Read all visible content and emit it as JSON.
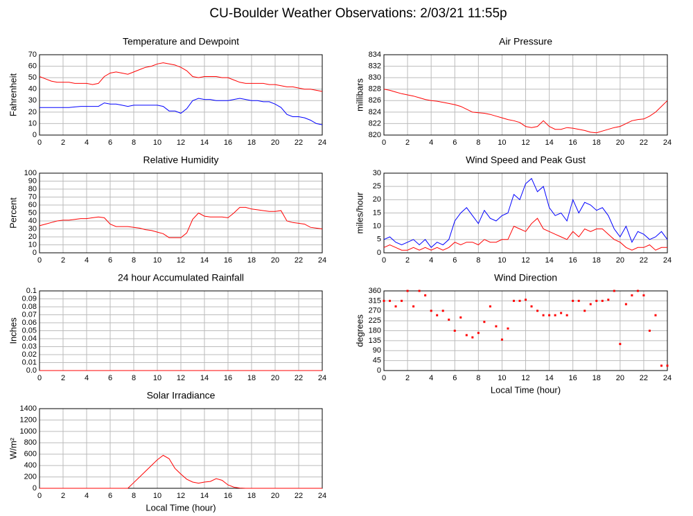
{
  "title": "CU-Boulder Weather Observations: 2/03/21 11:55p",
  "chart_data": [
    {
      "type": "line",
      "title": "Temperature and Dewpoint",
      "ylabel": "Fahrenheit",
      "x": [
        0,
        0.5,
        1,
        1.5,
        2,
        2.5,
        3,
        3.5,
        4,
        4.5,
        5,
        5.5,
        6,
        6.5,
        7,
        7.5,
        8,
        8.5,
        9,
        9.5,
        10,
        10.5,
        11,
        11.5,
        12,
        12.5,
        13,
        13.5,
        14,
        14.5,
        15,
        15.5,
        16,
        16.5,
        17,
        17.5,
        18,
        18.5,
        19,
        19.5,
        20,
        20.5,
        21,
        21.5,
        22,
        22.5,
        23,
        23.5,
        24
      ],
      "series": [
        {
          "color": "#ff0000",
          "values": [
            51,
            49,
            47,
            46,
            46,
            46,
            45,
            45,
            45,
            44,
            45,
            51,
            54,
            55,
            54,
            53,
            55,
            57,
            59,
            60,
            62,
            63,
            62,
            61,
            59,
            56,
            51,
            50,
            51,
            51,
            51,
            50,
            50,
            48,
            46,
            45,
            45,
            45,
            45,
            44,
            44,
            43,
            42,
            42,
            41,
            40,
            40,
            39,
            38
          ]
        },
        {
          "color": "#0000ff",
          "values": [
            24,
            24,
            24,
            24,
            24,
            24,
            24.5,
            25,
            25,
            25,
            25,
            28,
            27,
            27,
            26,
            25,
            26,
            26,
            26,
            26,
            26,
            25,
            21,
            21,
            19,
            23,
            30,
            32,
            31,
            31,
            30,
            30,
            30,
            31,
            32,
            31,
            30,
            30,
            29,
            29,
            27,
            24,
            18,
            16,
            16,
            15,
            13,
            10,
            9
          ]
        }
      ],
      "xlim": [
        0,
        24
      ],
      "xticks": [
        0,
        2,
        4,
        6,
        8,
        10,
        12,
        14,
        16,
        18,
        20,
        22,
        24
      ],
      "ylim": [
        0,
        70
      ],
      "yticks": [
        0,
        10,
        20,
        30,
        40,
        50,
        60,
        70
      ],
      "grid": true
    },
    {
      "type": "line",
      "title": "Air Pressure",
      "ylabel": "millibars",
      "x": [
        0,
        0.5,
        1,
        1.5,
        2,
        2.5,
        3,
        3.5,
        4,
        4.5,
        5,
        5.5,
        6,
        6.5,
        7,
        7.5,
        8,
        8.5,
        9,
        9.5,
        10,
        10.5,
        11,
        11.5,
        12,
        12.5,
        13,
        13.5,
        14,
        14.5,
        15,
        15.5,
        16,
        16.5,
        17,
        17.5,
        18,
        18.5,
        19,
        19.5,
        20,
        20.5,
        21,
        21.5,
        22,
        22.5,
        23,
        23.5,
        24
      ],
      "series": [
        {
          "color": "#ff0000",
          "values": [
            828,
            827.8,
            827.5,
            827.2,
            827,
            826.8,
            826.5,
            826.2,
            826,
            825.9,
            825.7,
            825.5,
            825.3,
            825,
            824.5,
            824,
            823.9,
            823.8,
            823.6,
            823.3,
            823,
            822.7,
            822.5,
            822.2,
            821.5,
            821.3,
            821.5,
            822.5,
            821.5,
            821,
            821,
            821.3,
            821.2,
            821,
            820.8,
            820.5,
            820.4,
            820.7,
            821,
            821.3,
            821.5,
            822,
            822.5,
            822.7,
            822.8,
            823.3,
            824,
            825,
            826
          ]
        }
      ],
      "xlim": [
        0,
        24
      ],
      "xticks": [
        0,
        2,
        4,
        6,
        8,
        10,
        12,
        14,
        16,
        18,
        20,
        22,
        24
      ],
      "ylim": [
        820,
        834
      ],
      "yticks": [
        820,
        822,
        824,
        826,
        828,
        830,
        832,
        834
      ],
      "grid": true
    },
    {
      "type": "line",
      "title": "Relative Humidity",
      "ylabel": "Percent",
      "x": [
        0,
        0.5,
        1,
        1.5,
        2,
        2.5,
        3,
        3.5,
        4,
        4.5,
        5,
        5.5,
        6,
        6.5,
        7,
        7.5,
        8,
        8.5,
        9,
        9.5,
        10,
        10.5,
        11,
        11.5,
        12,
        12.5,
        13,
        13.5,
        14,
        14.5,
        15,
        15.5,
        16,
        16.5,
        17,
        17.5,
        18,
        18.5,
        19,
        19.5,
        20,
        20.5,
        21,
        21.5,
        22,
        22.5,
        23,
        23.5,
        24
      ],
      "series": [
        {
          "color": "#ff0000",
          "values": [
            34,
            36,
            38,
            40,
            41,
            41,
            42,
            43,
            43,
            44,
            45,
            44,
            36,
            33,
            33,
            33,
            32,
            31,
            29,
            28,
            26,
            24,
            19,
            19,
            19,
            25,
            42,
            50,
            46,
            45,
            45,
            45,
            44,
            50,
            57,
            57,
            55,
            54,
            53,
            52,
            52,
            53,
            40,
            38,
            37,
            36,
            32,
            31,
            30
          ]
        }
      ],
      "xlim": [
        0,
        24
      ],
      "xticks": [
        0,
        2,
        4,
        6,
        8,
        10,
        12,
        14,
        16,
        18,
        20,
        22,
        24
      ],
      "ylim": [
        0,
        100
      ],
      "yticks": [
        0,
        10,
        20,
        30,
        40,
        50,
        60,
        70,
        80,
        90,
        100
      ],
      "grid": true
    },
    {
      "type": "line",
      "title": "Wind Speed and Peak Gust",
      "ylabel": "miles/hour",
      "x": [
        0,
        0.5,
        1,
        1.5,
        2,
        2.5,
        3,
        3.5,
        4,
        4.5,
        5,
        5.5,
        6,
        6.5,
        7,
        7.5,
        8,
        8.5,
        9,
        9.5,
        10,
        10.5,
        11,
        11.5,
        12,
        12.5,
        13,
        13.5,
        14,
        14.5,
        15,
        15.5,
        16,
        16.5,
        17,
        17.5,
        18,
        18.5,
        19,
        19.5,
        20,
        20.5,
        21,
        21.5,
        22,
        22.5,
        23,
        23.5,
        24
      ],
      "series": [
        {
          "color": "#0000ff",
          "values": [
            5,
            6,
            4,
            3,
            4,
            5,
            3,
            5,
            2,
            4,
            3,
            5,
            12,
            15,
            17,
            14,
            11,
            16,
            13,
            12,
            14,
            15,
            22,
            20,
            26,
            28,
            23,
            25,
            17,
            14,
            15,
            12,
            20,
            15,
            19,
            18,
            16,
            17,
            14,
            9,
            6,
            10,
            4,
            8,
            7,
            5,
            6,
            8,
            5
          ]
        },
        {
          "color": "#ff0000",
          "values": [
            2,
            3,
            2,
            1,
            1,
            2,
            1,
            2,
            1,
            2,
            1,
            2,
            4,
            3,
            4,
            4,
            3,
            5,
            4,
            4,
            5,
            5,
            10,
            9,
            8,
            11,
            13,
            9,
            8,
            7,
            6,
            5,
            8,
            6,
            9,
            8,
            9,
            9,
            7,
            5,
            4,
            2,
            1,
            2,
            2,
            3,
            1,
            2,
            2
          ]
        }
      ],
      "xlim": [
        0,
        24
      ],
      "xticks": [
        0,
        2,
        4,
        6,
        8,
        10,
        12,
        14,
        16,
        18,
        20,
        22,
        24
      ],
      "ylim": [
        0,
        30
      ],
      "yticks": [
        0,
        5,
        10,
        15,
        20,
        25,
        30
      ],
      "grid": true
    },
    {
      "type": "line",
      "title": "24 hour Accumulated Rainfall",
      "ylabel": "Inches",
      "x": [
        0,
        2,
        4,
        6,
        8,
        10,
        12,
        14,
        16,
        18,
        20,
        22,
        24
      ],
      "series": [
        {
          "color": "#ff0000",
          "values": [
            0,
            0,
            0,
            0,
            0,
            0,
            0,
            0,
            0,
            0,
            0,
            0,
            0
          ]
        }
      ],
      "xlim": [
        0,
        24
      ],
      "xticks": [
        0,
        2,
        4,
        6,
        8,
        10,
        12,
        14,
        16,
        18,
        20,
        22,
        24
      ],
      "ylim": [
        0,
        0.1
      ],
      "yticks": [
        {
          "value": 0,
          "label": "0.0"
        },
        0.01,
        0.02,
        0.03,
        0.04,
        0.05,
        0.06,
        0.07,
        0.08,
        0.09,
        0.1
      ],
      "grid": true
    },
    {
      "type": "scatter",
      "title": "Wind Direction",
      "ylabel": "degrees",
      "xlabel": "Local Time (hour)",
      "x": [
        0,
        0.5,
        1,
        1.5,
        2,
        2.5,
        3,
        3.5,
        4,
        4.5,
        5,
        5.5,
        6,
        6.5,
        7,
        7.5,
        8,
        8.5,
        9,
        9.5,
        10,
        10.5,
        11,
        11.5,
        12,
        12.5,
        13,
        13.5,
        14,
        14.5,
        15,
        15.5,
        16,
        16.5,
        17,
        17.5,
        18,
        18.5,
        19,
        19.5,
        20,
        20.5,
        21,
        21.5,
        22,
        22.5,
        23,
        23.5,
        24
      ],
      "series": [
        {
          "color": "#ff0000",
          "values": [
            315,
            315,
            290,
            315,
            360,
            290,
            360,
            340,
            270,
            250,
            270,
            230,
            180,
            240,
            160,
            150,
            170,
            220,
            290,
            200,
            140,
            190,
            315,
            315,
            320,
            290,
            270,
            250,
            250,
            250,
            260,
            250,
            315,
            315,
            270,
            300,
            315,
            315,
            320,
            360,
            120,
            300,
            340,
            360,
            340,
            180,
            250,
            22,
            22
          ]
        }
      ],
      "xlim": [
        0,
        24
      ],
      "xticks": [
        0,
        2,
        4,
        6,
        8,
        10,
        12,
        14,
        16,
        18,
        20,
        22,
        24
      ],
      "ylim": [
        0,
        360
      ],
      "yticks": [
        0,
        45,
        90,
        135,
        180,
        225,
        270,
        315,
        360
      ],
      "grid": true
    },
    {
      "type": "line",
      "title": "Solar Irradiance",
      "ylabel": "W/m²",
      "xlabel": "Local Time (hour)",
      "x": [
        0,
        0.5,
        1,
        1.5,
        2,
        2.5,
        3,
        3.5,
        4,
        4.5,
        5,
        5.5,
        6,
        6.5,
        7,
        7.5,
        8,
        8.5,
        9,
        9.5,
        10,
        10.5,
        11,
        11.5,
        12,
        12.5,
        13,
        13.5,
        14,
        14.5,
        15,
        15.5,
        16,
        16.5,
        17,
        17.5,
        18,
        18.5,
        19,
        19.5,
        20,
        20.5,
        21,
        21.5,
        22,
        22.5,
        23,
        23.5,
        24
      ],
      "series": [
        {
          "color": "#ff0000",
          "values": [
            0,
            0,
            0,
            0,
            0,
            0,
            0,
            0,
            0,
            0,
            0,
            0,
            0,
            0,
            0,
            0,
            100,
            200,
            300,
            400,
            500,
            580,
            520,
            350,
            250,
            160,
            110,
            90,
            110,
            120,
            170,
            140,
            60,
            20,
            5,
            0,
            0,
            0,
            0,
            0,
            0,
            0,
            0,
            0,
            0,
            0,
            0,
            0,
            0
          ]
        }
      ],
      "xlim": [
        0,
        24
      ],
      "xticks": [
        0,
        2,
        4,
        6,
        8,
        10,
        12,
        14,
        16,
        18,
        20,
        22,
        24
      ],
      "ylim": [
        0,
        1400
      ],
      "yticks": [
        0,
        200,
        400,
        600,
        800,
        1000,
        1200,
        1400
      ],
      "grid": true
    }
  ]
}
